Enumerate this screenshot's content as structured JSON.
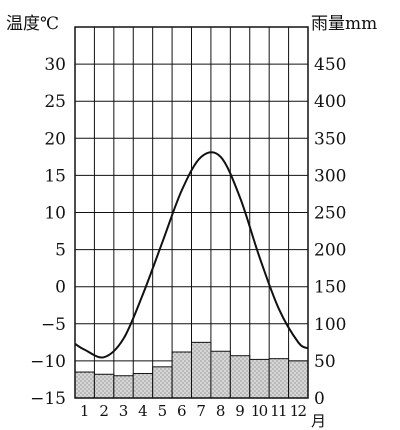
{
  "chart_data": {
    "type": "bar",
    "title": "",
    "left_axis": {
      "label": "温度℃",
      "ticks": [
        "30",
        "25",
        "20",
        "15",
        "10",
        "5",
        "0",
        "−5",
        "−10",
        "−15"
      ],
      "range": [
        -15,
        35
      ]
    },
    "right_axis": {
      "label": "雨量mm",
      "ticks": [
        "450",
        "400",
        "350",
        "300",
        "250",
        "200",
        "150",
        "100",
        "50",
        "0"
      ],
      "range": [
        0,
        500
      ]
    },
    "x_axis": {
      "categories": [
        "1",
        "2",
        "3",
        "4",
        "5",
        "6",
        "7",
        "8",
        "9",
        "10",
        "11",
        "12"
      ],
      "unit": "月"
    },
    "series": [
      {
        "kind": "line",
        "axis": "left",
        "values": [
          -8.5,
          -9.5,
          -7,
          -1,
          6,
          13,
          17.5,
          17.5,
          12,
          4,
          -3,
          -7.5
        ]
      },
      {
        "kind": "bar",
        "axis": "right",
        "values": [
          35,
          32,
          30,
          33,
          42,
          62,
          75,
          63,
          57,
          52,
          53,
          50
        ]
      }
    ],
    "grid": true,
    "colors": {
      "line": "#111111",
      "bar_fill": "#d6d6d6",
      "grid": "#111111"
    }
  }
}
